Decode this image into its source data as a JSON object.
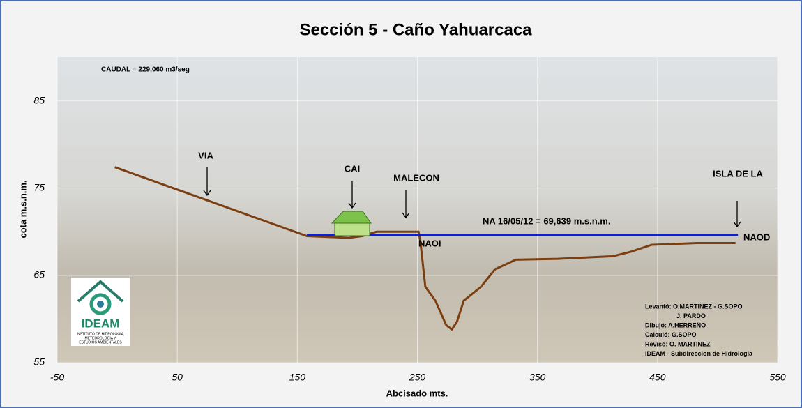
{
  "chart_data": {
    "type": "line",
    "title": "Sección 5 - Caño Yahuarcaca",
    "x_label": "Abcisado mts.",
    "y_label": "cota m.s.n.m.",
    "xlim": [
      -50,
      550
    ],
    "xticks": [
      -50,
      50,
      150,
      250,
      350,
      450,
      550
    ],
    "ylim": [
      55,
      90
    ],
    "yticks": [
      55,
      65,
      75,
      85
    ],
    "grid": true,
    "series": [
      {
        "color": "#7a3e10",
        "x": [
          -2,
          158,
          193,
          204,
          216,
          251,
          252.5,
          256.6,
          265,
          274,
          278.7,
          283,
          288.6,
          303,
          314.7,
          332,
          367,
          413,
          427.6,
          445,
          483,
          515
        ],
        "values": [
          77.4,
          69.5,
          69.3,
          69.5,
          70.0,
          70.0,
          68.9,
          63.7,
          62.1,
          59.3,
          58.8,
          59.7,
          62.1,
          63.7,
          65.7,
          66.8,
          66.9,
          67.2,
          67.7,
          68.5,
          68.7,
          68.7
        ]
      },
      {
        "color": "#0a1ee0",
        "x": [
          158,
          517
        ],
        "values": [
          69.639,
          69.639
        ]
      }
    ],
    "annotations": [
      "CAUDAL = 229,060 m3/seg",
      "VIA",
      "CAI",
      "MALECON",
      "ISLA DE LA",
      "NA 16/05/12 = 69,639 m.s.n.m.",
      "NAOI",
      "NAOD"
    ],
    "credits": [
      "Levantó: O.MARTINEZ - G.SOPO",
      "J. PARDO",
      "Dibujó:   A.HERREÑO",
      "Calculó:   G.SOPO",
      "Revisó:   O. MARTINEZ",
      "IDEAM - Subdireccion de Hidrologia"
    ],
    "logo": {
      "name": "IDEAM",
      "subtitle": [
        "INSTITUTO DE HIDROLOGIA,",
        "METEOROLOGIA Y",
        "ESTUDIOS AMBIENTALES"
      ]
    }
  }
}
